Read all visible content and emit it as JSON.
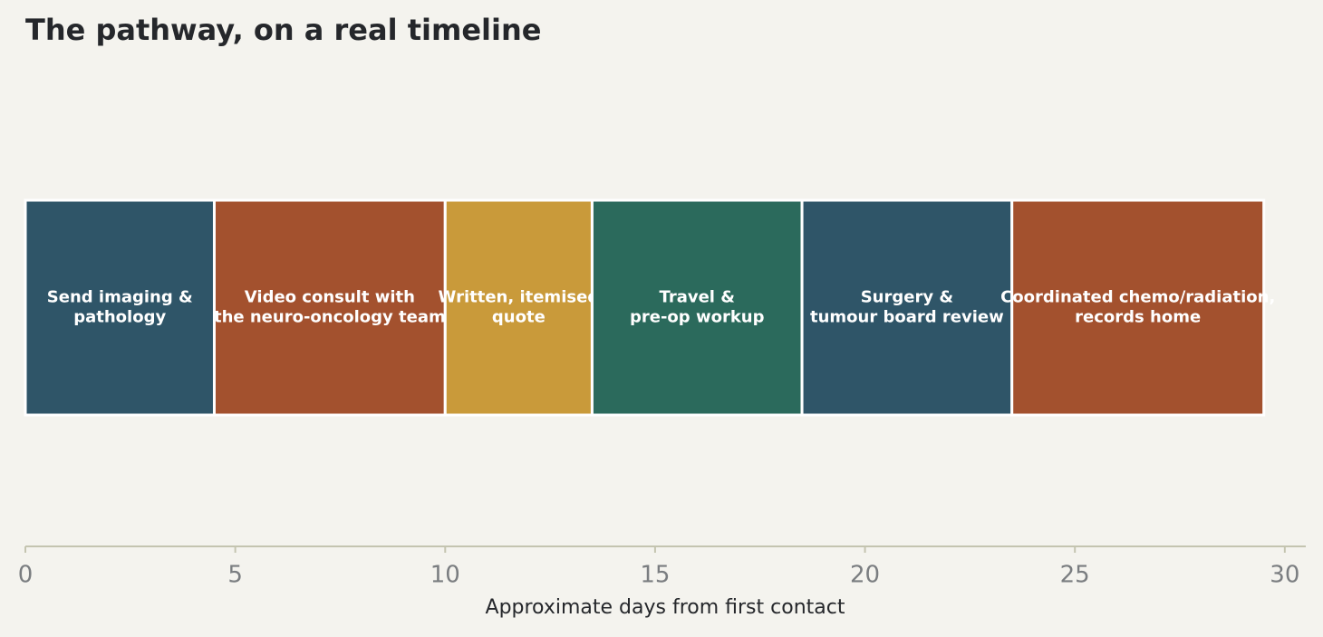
{
  "chart_data": {
    "type": "timeline",
    "title": "The pathway, on a real timeline",
    "xlabel": "Approximate days from first contact",
    "labels": [
      "Send imaging &\npathology",
      "Video consult with\nthe neuro-oncology team",
      "Written, itemised\nquote",
      "Travel &\npre-op workup",
      "Surgery &\ntumour board review",
      "Coordinated chemo/radiation,\nrecords home"
    ],
    "start": [
      0,
      4.5,
      10,
      13.5,
      18.5,
      23.5
    ],
    "duration": [
      4.5,
      5.5,
      3.5,
      5,
      5,
      6
    ],
    "colors": [
      "#2f5568",
      "#a3512e",
      "#c99a3a",
      "#2b6a5c",
      "#2f5568",
      "#a3512e"
    ],
    "xlim": [
      0,
      30.5
    ],
    "xticks": [
      0,
      5,
      10,
      15,
      20,
      25,
      30
    ]
  }
}
